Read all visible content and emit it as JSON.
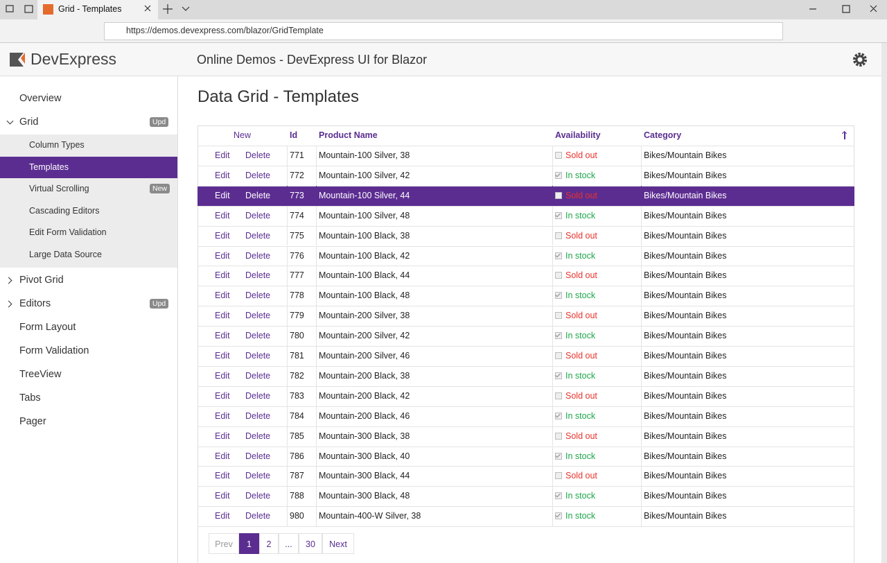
{
  "browser": {
    "tab_title": "Grid - Templates",
    "url": "https://demos.devexpress.com/blazor/GridTemplate"
  },
  "header": {
    "logo": "DevExpress",
    "title": "Online Demos - DevExpress UI for Blazor"
  },
  "sidebar": {
    "selected": "1.1",
    "items": [
      {
        "label": "Overview"
      },
      {
        "label": "Grid",
        "badge": "Upd",
        "expanded": true,
        "children": [
          {
            "label": "Column Types"
          },
          {
            "label": "Templates"
          },
          {
            "label": "Virtual Scrolling",
            "badge": "New"
          },
          {
            "label": "Cascading Editors"
          },
          {
            "label": "Edit Form Validation"
          },
          {
            "label": "Large Data Source"
          }
        ]
      },
      {
        "label": "Pivot Grid",
        "expandable": true
      },
      {
        "label": "Editors",
        "badge": "Upd",
        "expandable": true
      },
      {
        "label": "Form Layout"
      },
      {
        "label": "Form Validation"
      },
      {
        "label": "TreeView"
      },
      {
        "label": "Tabs"
      },
      {
        "label": "Pager"
      }
    ]
  },
  "page": {
    "heading": "Data Grid - Templates"
  },
  "grid": {
    "new_label": "New",
    "edit_label": "Edit",
    "delete_label": "Delete",
    "columns": [
      "Id",
      "Product Name",
      "Availability",
      "Category"
    ],
    "selected_row": 2,
    "rows": [
      {
        "id": 771,
        "name": "Mountain-100 Silver, 38",
        "availability": "Sold out",
        "in_stock": false,
        "category": "Bikes/Mountain Bikes"
      },
      {
        "id": 772,
        "name": "Mountain-100 Silver, 42",
        "availability": "In stock",
        "in_stock": true,
        "category": "Bikes/Mountain Bikes"
      },
      {
        "id": 773,
        "name": "Mountain-100 Silver, 44",
        "availability": "Sold out",
        "in_stock": false,
        "category": "Bikes/Mountain Bikes"
      },
      {
        "id": 774,
        "name": "Mountain-100 Silver, 48",
        "availability": "In stock",
        "in_stock": true,
        "category": "Bikes/Mountain Bikes"
      },
      {
        "id": 775,
        "name": "Mountain-100 Black, 38",
        "availability": "Sold out",
        "in_stock": false,
        "category": "Bikes/Mountain Bikes"
      },
      {
        "id": 776,
        "name": "Mountain-100 Black, 42",
        "availability": "In stock",
        "in_stock": true,
        "category": "Bikes/Mountain Bikes"
      },
      {
        "id": 777,
        "name": "Mountain-100 Black, 44",
        "availability": "Sold out",
        "in_stock": false,
        "category": "Bikes/Mountain Bikes"
      },
      {
        "id": 778,
        "name": "Mountain-100 Black, 48",
        "availability": "In stock",
        "in_stock": true,
        "category": "Bikes/Mountain Bikes"
      },
      {
        "id": 779,
        "name": "Mountain-200 Silver, 38",
        "availability": "Sold out",
        "in_stock": false,
        "category": "Bikes/Mountain Bikes"
      },
      {
        "id": 780,
        "name": "Mountain-200 Silver, 42",
        "availability": "In stock",
        "in_stock": true,
        "category": "Bikes/Mountain Bikes"
      },
      {
        "id": 781,
        "name": "Mountain-200 Silver, 46",
        "availability": "Sold out",
        "in_stock": false,
        "category": "Bikes/Mountain Bikes"
      },
      {
        "id": 782,
        "name": "Mountain-200 Black, 38",
        "availability": "In stock",
        "in_stock": true,
        "category": "Bikes/Mountain Bikes"
      },
      {
        "id": 783,
        "name": "Mountain-200 Black, 42",
        "availability": "Sold out",
        "in_stock": false,
        "category": "Bikes/Mountain Bikes"
      },
      {
        "id": 784,
        "name": "Mountain-200 Black, 46",
        "availability": "In stock",
        "in_stock": true,
        "category": "Bikes/Mountain Bikes"
      },
      {
        "id": 785,
        "name": "Mountain-300 Black, 38",
        "availability": "Sold out",
        "in_stock": false,
        "category": "Bikes/Mountain Bikes"
      },
      {
        "id": 786,
        "name": "Mountain-300 Black, 40",
        "availability": "In stock",
        "in_stock": true,
        "category": "Bikes/Mountain Bikes"
      },
      {
        "id": 787,
        "name": "Mountain-300 Black, 44",
        "availability": "Sold out",
        "in_stock": false,
        "category": "Bikes/Mountain Bikes"
      },
      {
        "id": 788,
        "name": "Mountain-300 Black, 48",
        "availability": "In stock",
        "in_stock": true,
        "category": "Bikes/Mountain Bikes"
      },
      {
        "id": 980,
        "name": "Mountain-400-W Silver, 38",
        "availability": "In stock",
        "in_stock": true,
        "category": "Bikes/Mountain Bikes"
      }
    ]
  },
  "pager": {
    "active": 1,
    "items": [
      "Prev",
      "1",
      "2",
      "...",
      "30",
      "Next"
    ]
  }
}
